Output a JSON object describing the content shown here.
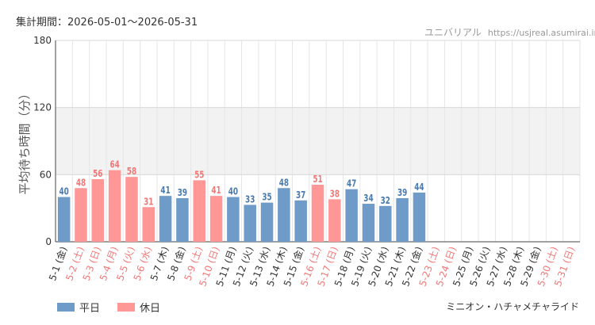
{
  "header": {
    "period": "集計期間：2026-05-01〜2026-05-31",
    "brand_name": "ユニバリアル",
    "brand_url": "https://usjreal.asumirai.info"
  },
  "footer": {
    "attraction": "ミニオン・ハチャメチャライド"
  },
  "colors": {
    "weekday": "#6f9bc8",
    "holiday": "#ff9797",
    "weekday_label": "#4a7aae",
    "holiday_label": "#f07878",
    "band": "#f2f2f2"
  },
  "chart_data": {
    "type": "bar",
    "ylabel": "平均待ち時間（分）",
    "ylim": [
      0,
      180
    ],
    "yticks": [
      0,
      60,
      120,
      180
    ],
    "bands": [
      [
        60,
        120
      ]
    ],
    "legend": [
      {
        "name": "平日",
        "kind": "weekday"
      },
      {
        "name": "休日",
        "kind": "holiday"
      }
    ],
    "categories": [
      "5-1 (金)",
      "5-2 (土)",
      "5-3 (日)",
      "5-4 (月)",
      "5-5 (火)",
      "5-6 (水)",
      "5-7 (木)",
      "5-8 (金)",
      "5-9 (土)",
      "5-10 (日)",
      "5-11 (月)",
      "5-12 (火)",
      "5-13 (水)",
      "5-14 (木)",
      "5-15 (金)",
      "5-16 (土)",
      "5-17 (日)",
      "5-18 (月)",
      "5-19 (火)",
      "5-20 (水)",
      "5-21 (木)",
      "5-22 (金)",
      "5-23 (土)",
      "5-24 (日)",
      "5-25 (月)",
      "5-26 (火)",
      "5-27 (水)",
      "5-28 (木)",
      "5-29 (金)",
      "5-30 (土)",
      "5-31 (日)"
    ],
    "day_type": [
      "weekday",
      "holiday",
      "holiday",
      "holiday",
      "holiday",
      "holiday",
      "weekday",
      "weekday",
      "holiday",
      "holiday",
      "weekday",
      "weekday",
      "weekday",
      "weekday",
      "weekday",
      "holiday",
      "holiday",
      "weekday",
      "weekday",
      "weekday",
      "weekday",
      "weekday",
      "holiday",
      "holiday",
      "weekday",
      "weekday",
      "weekday",
      "weekday",
      "weekday",
      "holiday",
      "holiday"
    ],
    "values": [
      40,
      48,
      56,
      64,
      58,
      31,
      41,
      39,
      55,
      41,
      40,
      33,
      35,
      48,
      37,
      51,
      38,
      47,
      34,
      32,
      39,
      44,
      null,
      null,
      null,
      null,
      null,
      null,
      null,
      null,
      null
    ]
  }
}
